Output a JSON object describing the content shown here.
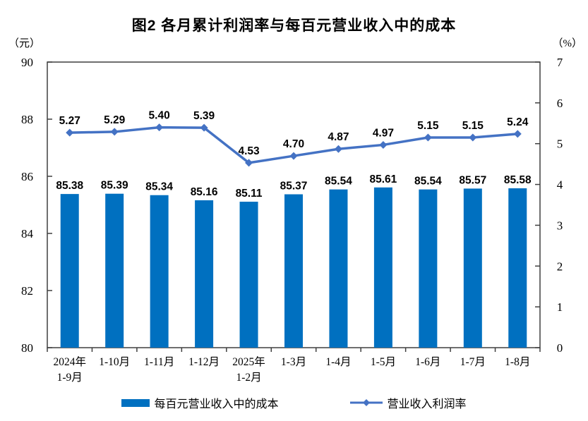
{
  "title": "图2 各月累计利润率与每百元营业收入中的成本",
  "left_axis_unit": "（元）",
  "right_axis_unit": "（%）",
  "colors": {
    "bar": "#0070C0",
    "line": "#4472C4",
    "axis": "#3F3F3F",
    "text": "#000000"
  },
  "legend": [
    {
      "type": "bar",
      "label": "每百元营业收入中的成本"
    },
    {
      "type": "line",
      "label": "营业收入利润率"
    }
  ],
  "chart_data": {
    "type": "bar+line combo",
    "title": "图2 各月累计利润率与每百元营业收入中的成本",
    "categories": [
      [
        "2024年",
        "1-9月"
      ],
      [
        "1-10月"
      ],
      [
        "1-11月"
      ],
      [
        "1-12月"
      ],
      [
        "2025年",
        "1-2月"
      ],
      [
        "1-3月"
      ],
      [
        "1-4月"
      ],
      [
        "1-5月"
      ],
      [
        "1-6月"
      ],
      [
        "1-7月"
      ],
      [
        "1-8月"
      ]
    ],
    "series": [
      {
        "name": "每百元营业收入中的成本",
        "type": "bar",
        "axis": "left",
        "unit": "元",
        "values": [
          85.38,
          85.39,
          85.34,
          85.16,
          85.11,
          85.37,
          85.54,
          85.61,
          85.54,
          85.57,
          85.58
        ]
      },
      {
        "name": "营业收入利润率",
        "type": "line",
        "axis": "right",
        "unit": "%",
        "values": [
          5.27,
          5.29,
          5.4,
          5.39,
          4.53,
          4.7,
          4.87,
          4.97,
          5.15,
          5.15,
          5.24
        ]
      }
    ],
    "left_axis": {
      "label": "（元）",
      "min": 80,
      "max": 90,
      "ticks": [
        90,
        88,
        86,
        84,
        82,
        80
      ]
    },
    "right_axis": {
      "label": "（%）",
      "min": 0,
      "max": 7,
      "ticks": [
        7,
        6,
        5,
        4,
        3,
        2,
        1,
        0
      ]
    },
    "grid": false,
    "legend_position": "bottom",
    "data_labels": true
  }
}
